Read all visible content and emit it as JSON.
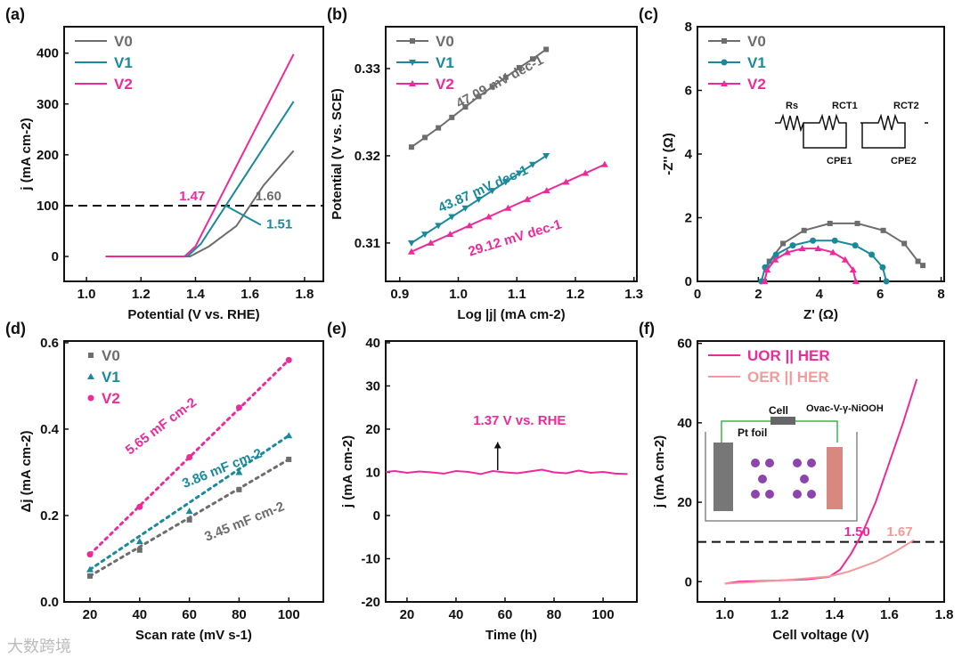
{
  "watermark": "大数跨境",
  "chart_data": [
    {
      "label": "(a)",
      "type": "line",
      "xlabel": "Potential (V vs. RHE)",
      "ylabel": "j (mA cm-2)",
      "xlim": [
        0.918,
        1.869
      ],
      "ylim": [
        -49,
        452
      ],
      "xticks": [
        1.0,
        1.2,
        1.4,
        1.6,
        1.8
      ],
      "xtick_labels": [
        "1.0",
        "1.2",
        "1.4",
        "1.6",
        "1.8"
      ],
      "yticks": [
        0,
        100,
        200,
        300,
        400
      ],
      "ytick_labels": [
        "0",
        "100",
        "200",
        "300",
        "400"
      ],
      "hlines": [
        100
      ],
      "series": [
        {
          "name": "V0",
          "color": "#6d6d6d",
          "marker": "none",
          "points": [
            [
              1.07,
              0
            ],
            [
              1.38,
              0
            ],
            [
              1.45,
              20
            ],
            [
              1.55,
              60
            ],
            [
              1.65,
              140
            ],
            [
              1.76,
              208
            ]
          ]
        },
        {
          "name": "V1",
          "color": "#1a8a9a",
          "marker": "none",
          "points": [
            [
              1.07,
              0
            ],
            [
              1.37,
              0
            ],
            [
              1.42,
              25
            ],
            [
              1.76,
              305
            ]
          ]
        },
        {
          "name": "V2",
          "color": "#ee2a9b",
          "marker": "none",
          "points": [
            [
              1.07,
              0
            ],
            [
              1.36,
              0
            ],
            [
              1.4,
              20
            ],
            [
              1.76,
              398
            ]
          ]
        }
      ],
      "annotations": [
        {
          "text": "1.47",
          "x": 1.34,
          "y": 110,
          "color": "#ee2a9b"
        },
        {
          "text": "1.60",
          "x": 1.62,
          "y": 110,
          "color": "#6d6d6d"
        },
        {
          "text": "1.51",
          "x": 1.66,
          "y": 55,
          "color": "#1a8a9a"
        }
      ],
      "legend": "top-left"
    },
    {
      "label": "(b)",
      "type": "scatter",
      "xlabel": "Log |j| (mA cm-2)",
      "ylabel": "Potential (V vs. SCE)",
      "xlim": [
        0.876,
        1.305
      ],
      "ylim": [
        0.3056,
        0.3348
      ],
      "xticks": [
        0.9,
        1.0,
        1.1,
        1.2,
        1.3
      ],
      "xtick_labels": [
        "0.9",
        "1.0",
        "1.1",
        "1.2",
        "1.3"
      ],
      "yticks": [
        0.31,
        0.32,
        0.33
      ],
      "ytick_labels": [
        "0.31",
        "0.32",
        "0.33"
      ],
      "series": [
        {
          "name": "V0",
          "color": "#6d6d6d",
          "marker": "square",
          "points": [
            [
              0.92,
              0.321
            ],
            [
              0.943,
              0.3221
            ],
            [
              0.966,
              0.3232
            ],
            [
              0.989,
              0.3244
            ],
            [
              1.012,
              0.3256
            ],
            [
              1.035,
              0.3268
            ],
            [
              1.058,
              0.3279
            ],
            [
              1.081,
              0.329
            ],
            [
              1.104,
              0.3301
            ],
            [
              1.127,
              0.3311
            ],
            [
              1.15,
              0.3322
            ]
          ]
        },
        {
          "name": "V1",
          "color": "#1a8a9a",
          "marker": "tri-down",
          "points": [
            [
              0.92,
              0.31
            ],
            [
              0.943,
              0.311
            ],
            [
              0.966,
              0.312
            ],
            [
              0.989,
              0.313
            ],
            [
              1.012,
              0.314
            ],
            [
              1.035,
              0.315
            ],
            [
              1.058,
              0.316
            ],
            [
              1.081,
              0.317
            ],
            [
              1.104,
              0.318
            ],
            [
              1.127,
              0.319
            ],
            [
              1.15,
              0.32
            ]
          ]
        },
        {
          "name": "V2",
          "color": "#ee2a9b",
          "marker": "tri-up",
          "points": [
            [
              0.92,
              0.309
            ],
            [
              0.953,
              0.31
            ],
            [
              0.986,
              0.311
            ],
            [
              1.019,
              0.312
            ],
            [
              1.052,
              0.313
            ],
            [
              1.085,
              0.314
            ],
            [
              1.118,
              0.315
            ],
            [
              1.151,
              0.316
            ],
            [
              1.184,
              0.317
            ],
            [
              1.217,
              0.318
            ],
            [
              1.25,
              0.319
            ]
          ]
        }
      ],
      "annotations": [
        {
          "text": "47.09 mV dec-1",
          "x": 0.98,
          "y": 0.3275,
          "color": "#6d6d6d",
          "rotate": -28
        },
        {
          "text": "43.87 mV dec-1",
          "x": 0.97,
          "y": 0.3135,
          "color": "#1a8a9a",
          "rotate": -24
        },
        {
          "text": "29.12 mV dec-1",
          "x": 1.02,
          "y": 0.3085,
          "color": "#ee2a9b",
          "rotate": -17
        }
      ],
      "legend": "top-left"
    },
    {
      "label": "(c)",
      "type": "scatter",
      "xlabel": "Z' (Ω)",
      "ylabel": "-Z'' (Ω)",
      "xlim": [
        0,
        8.1
      ],
      "ylim": [
        0,
        8
      ],
      "xticks": [
        0,
        2,
        4,
        6,
        8
      ],
      "xtick_labels": [
        "0",
        "2",
        "4",
        "6",
        "8"
      ],
      "yticks": [
        0,
        2,
        4,
        6,
        8
      ],
      "ytick_labels": [
        "0",
        "2",
        "4",
        "6",
        "8"
      ],
      "series": [
        {
          "name": "V0",
          "color": "#6d6d6d",
          "marker": "square",
          "points": [
            [
              2.2,
              0
            ],
            [
              2.36,
              0.63
            ],
            [
              2.81,
              1.19
            ],
            [
              3.5,
              1.6
            ],
            [
              4.35,
              1.82
            ],
            [
              5.25,
              1.82
            ],
            [
              6.1,
              1.6
            ],
            [
              6.79,
              1.19
            ],
            [
              7.24,
              0.63
            ],
            [
              7.4,
              0.5
            ]
          ]
        },
        {
          "name": "V1",
          "color": "#1a8a9a",
          "marker": "circle",
          "points": [
            [
              2.1,
              0
            ],
            [
              2.22,
              0.44
            ],
            [
              2.58,
              0.84
            ],
            [
              3.13,
              1.13
            ],
            [
              3.79,
              1.28
            ],
            [
              4.51,
              1.28
            ],
            [
              5.18,
              1.13
            ],
            [
              5.72,
              0.84
            ],
            [
              6.08,
              0.44
            ],
            [
              6.2,
              0
            ]
          ]
        },
        {
          "name": "V2",
          "color": "#ee2a9b",
          "marker": "tri-up",
          "points": [
            [
              2.2,
              0
            ],
            [
              2.29,
              0.36
            ],
            [
              2.55,
              0.68
            ],
            [
              2.95,
              0.91
            ],
            [
              3.44,
              1.03
            ],
            [
              3.96,
              1.03
            ],
            [
              4.45,
              0.91
            ],
            [
              4.85,
              0.68
            ],
            [
              5.11,
              0.36
            ],
            [
              5.2,
              0
            ]
          ]
        }
      ],
      "inset_circuit": {
        "labels": [
          "Rs",
          "RCT1",
          "RCT2",
          "CPE1",
          "CPE2"
        ]
      },
      "legend": "top-left"
    },
    {
      "label": "(d)",
      "type": "scatter",
      "xlabel": "Scan rate (mV s-1)",
      "ylabel": "Δj (mA cm-2)",
      "xlim": [
        9.6,
        113.9
      ],
      "ylim": [
        0,
        0.604
      ],
      "xticks": [
        20,
        40,
        60,
        80,
        100
      ],
      "xtick_labels": [
        "20",
        "40",
        "60",
        "80",
        "100"
      ],
      "yticks": [
        0,
        0.2,
        0.4,
        0.6
      ],
      "ytick_labels": [
        "0.0",
        "0.2",
        "0.4",
        "0.6"
      ],
      "series": [
        {
          "name": "V0",
          "color": "#6d6d6d",
          "marker": "square",
          "fit": true,
          "points": [
            [
              20,
              0.06
            ],
            [
              40,
              0.12
            ],
            [
              60,
              0.19
            ],
            [
              80,
              0.26
            ],
            [
              100,
              0.33
            ]
          ]
        },
        {
          "name": "V1",
          "color": "#1a8a9a",
          "marker": "tri-up",
          "fit": true,
          "points": [
            [
              20,
              0.075
            ],
            [
              40,
              0.14
            ],
            [
              60,
              0.21
            ],
            [
              80,
              0.3
            ],
            [
              100,
              0.385
            ]
          ]
        },
        {
          "name": "V2",
          "color": "#ee2a9b",
          "marker": "circle",
          "fit": true,
          "points": [
            [
              20,
              0.11
            ],
            [
              40,
              0.22
            ],
            [
              60,
              0.335
            ],
            [
              80,
              0.45
            ],
            [
              100,
              0.56
            ]
          ]
        }
      ],
      "annotations": [
        {
          "text": "5.65 mF cm-2",
          "x": 36,
          "y": 0.34,
          "color": "#ee2a9b",
          "rotate": -37
        },
        {
          "text": "3.86 mF cm-2",
          "x": 58,
          "y": 0.255,
          "color": "#1a8a9a",
          "rotate": -22
        },
        {
          "text": "3.45 mF cm-2",
          "x": 67,
          "y": 0.165,
          "color": "#6d6d6d",
          "rotate": -22
        }
      ],
      "legend": "top-left"
    },
    {
      "label": "(e)",
      "type": "line",
      "xlabel": "Time (h)",
      "ylabel": "j (mA cm-2)",
      "xlim": [
        11.3,
        113.8
      ],
      "ylim": [
        -20,
        40.4
      ],
      "xticks": [
        20,
        40,
        60,
        80,
        100
      ],
      "xtick_labels": [
        "20",
        "40",
        "60",
        "80",
        "100"
      ],
      "yticks": [
        -20,
        -10,
        0,
        10,
        20,
        30,
        40
      ],
      "ytick_labels": [
        "-20",
        "-10",
        "0",
        "10",
        "20",
        "30",
        "40"
      ],
      "series": [
        {
          "name": "j",
          "color": "#ee2a9b",
          "marker": "none",
          "points": [
            [
              11.3,
              10.1
            ],
            [
              15,
              10.3
            ],
            [
              20,
              9.9
            ],
            [
              25,
              10.2
            ],
            [
              30,
              10.0
            ],
            [
              35,
              9.7
            ],
            [
              40,
              10.3
            ],
            [
              45,
              10.1
            ],
            [
              50,
              9.6
            ],
            [
              55,
              10.3
            ],
            [
              60,
              10.0
            ],
            [
              65,
              9.8
            ],
            [
              70,
              10.2
            ],
            [
              75,
              10.6
            ],
            [
              80,
              10.0
            ],
            [
              85,
              9.8
            ],
            [
              90,
              10.4
            ],
            [
              95,
              9.9
            ],
            [
              100,
              10.1
            ],
            [
              105,
              9.7
            ],
            [
              110,
              9.6
            ]
          ]
        }
      ],
      "annotations": [
        {
          "text": "1.37 V vs. RHE",
          "x": 47,
          "y": 21,
          "color": "#ee2a9b"
        }
      ],
      "arrow": {
        "x": 57,
        "from": 10.5,
        "to": 17
      }
    },
    {
      "label": "(f)",
      "type": "line",
      "xlabel": "Cell voltage (V)",
      "ylabel": "j (mA cm-2)",
      "xlim": [
        0.9,
        1.8
      ],
      "ylim": [
        -5.1,
        60.6
      ],
      "xticks": [
        1.0,
        1.2,
        1.4,
        1.6,
        1.8
      ],
      "xtick_labels": [
        "1.0",
        "1.2",
        "1.4",
        "1.6",
        "1.8"
      ],
      "yticks": [
        0,
        20,
        40,
        60
      ],
      "ytick_labels": [
        "0",
        "20",
        "40",
        "60"
      ],
      "hlines": [
        10
      ],
      "series": [
        {
          "name": "UOR || HER",
          "color": "#ee2a9b",
          "marker": "none",
          "points": [
            [
              1.0,
              -0.5
            ],
            [
              1.05,
              0
            ],
            [
              1.2,
              0.3
            ],
            [
              1.3,
              0.6
            ],
            [
              1.38,
              1.2
            ],
            [
              1.42,
              3
            ],
            [
              1.46,
              7
            ],
            [
              1.5,
              12
            ],
            [
              1.55,
              20
            ],
            [
              1.6,
              30
            ],
            [
              1.65,
              40
            ],
            [
              1.7,
              51
            ]
          ]
        },
        {
          "name": "OER || HER",
          "color": "#f49a98",
          "marker": "none",
          "points": [
            [
              1.0,
              -0.5
            ],
            [
              1.2,
              0.3
            ],
            [
              1.38,
              1.3
            ],
            [
              1.45,
              2.5
            ],
            [
              1.55,
              5
            ],
            [
              1.62,
              7.5
            ],
            [
              1.69,
              10.5
            ]
          ]
        }
      ],
      "annotations": [
        {
          "text": "1.50",
          "x": 1.435,
          "y": 11.5,
          "color": "#ee2a9b"
        },
        {
          "text": "1.67",
          "x": 1.59,
          "y": 11.5,
          "color": "#f49a98"
        }
      ],
      "inset_cell": {
        "labels": [
          "Cell",
          "Pt foil",
          "Ovac-V-γ-NiOOH"
        ]
      },
      "legend": "top-left"
    }
  ]
}
